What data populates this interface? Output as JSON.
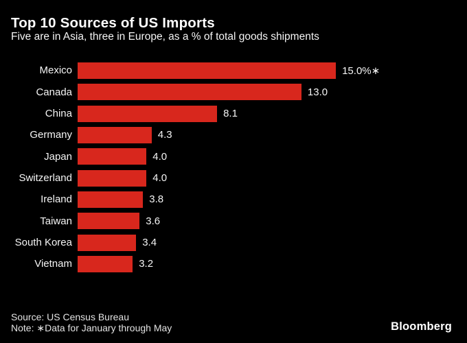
{
  "header": {
    "title": "Top 10 Sources of US Imports",
    "subtitle": "Five are in Asia, three in Europe, as a % of total goods shipments"
  },
  "chart_data": {
    "type": "bar",
    "orientation": "horizontal",
    "title": "Top 10 Sources of US Imports",
    "subtitle": "Five are in Asia, three in Europe, as a % of total goods shipments",
    "unit": "% of total goods shipments",
    "categories": [
      "Mexico",
      "Canada",
      "China",
      "Germany",
      "Japan",
      "Switzerland",
      "Ireland",
      "Taiwan",
      "South Korea",
      "Vietnam"
    ],
    "values": [
      15.0,
      13.0,
      8.1,
      4.3,
      4.0,
      4.0,
      3.8,
      3.6,
      3.4,
      3.2
    ],
    "value_labels": [
      "15.0%∗",
      "13.0",
      "8.1",
      "4.3",
      "4.0",
      "4.0",
      "3.8",
      "3.6",
      "3.4",
      "3.2"
    ],
    "xlim": [
      0,
      15
    ],
    "grid": false,
    "legend": "none",
    "bar_color": "#d8271d",
    "background_color": "#000000",
    "text_color": "#f5f5f5"
  },
  "footer": {
    "source": "Source: US Census Bureau",
    "note": "Note: ∗Data for January through May",
    "brand": "Bloomberg"
  }
}
